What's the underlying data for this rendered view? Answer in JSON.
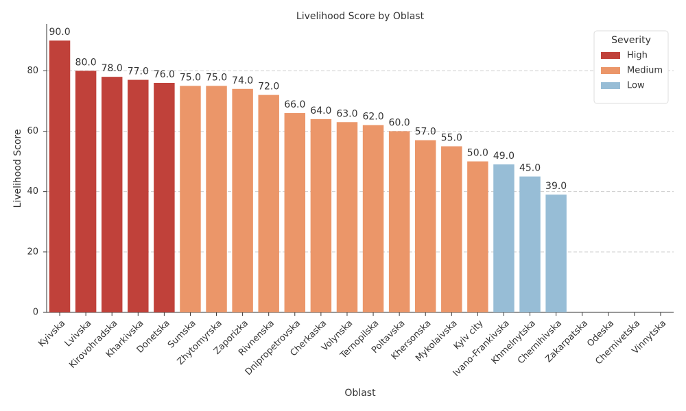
{
  "chart_data": {
    "type": "bar",
    "title": "Livelihood Score by Oblast",
    "x_label": "Oblast",
    "y_label": "Livelihood Score",
    "categories": [
      "Kyivska",
      "Lvivska",
      "Kirovohradska",
      "Kharkivska",
      "Donetska",
      "Sumska",
      "Zhytomyrska",
      "Zaporizka",
      "Rivnenska",
      "Dnipropetrovska",
      "Cherkaska",
      "Volynska",
      "Ternopilska",
      "Poltavska",
      "Khersonska",
      "Mykolaivska",
      "Kyiv city",
      "Ivano-Frankivska",
      "Khmelnytska",
      "Chernihivska",
      "Zakarpatska",
      "Odeska",
      "Chernivetska",
      "Vinnytska"
    ],
    "series": [
      {
        "name": "High",
        "color": "#c0413a",
        "values": [
          90,
          80,
          78,
          77,
          76,
          null,
          null,
          null,
          null,
          null,
          null,
          null,
          null,
          null,
          null,
          null,
          null,
          null,
          null,
          null,
          null,
          null,
          null,
          null
        ],
        "value_labels": [
          "90.0",
          "80.0",
          "78.0",
          "77.0",
          "76.0",
          null,
          null,
          null,
          null,
          null,
          null,
          null,
          null,
          null,
          null,
          null,
          null,
          null,
          null,
          null,
          null,
          null,
          null,
          null
        ]
      },
      {
        "name": "Medium",
        "color": "#eb9669",
        "values": [
          null,
          null,
          null,
          null,
          null,
          75,
          75,
          74,
          72,
          66,
          64,
          63,
          62,
          60,
          57,
          55,
          50,
          null,
          null,
          null,
          null,
          null,
          null,
          null
        ],
        "value_labels": [
          null,
          null,
          null,
          null,
          null,
          "75.0",
          "75.0",
          "74.0",
          "72.0",
          "66.0",
          "64.0",
          "63.0",
          "62.0",
          "60.0",
          "57.0",
          "55.0",
          "50.0",
          null,
          null,
          null,
          null,
          null,
          null,
          null
        ]
      },
      {
        "name": "Low",
        "color": "#97bdd6",
        "values": [
          null,
          null,
          null,
          null,
          null,
          null,
          null,
          null,
          null,
          null,
          null,
          null,
          null,
          null,
          null,
          null,
          null,
          49,
          45,
          39,
          null,
          null,
          null,
          null
        ],
        "value_labels": [
          null,
          null,
          null,
          null,
          null,
          null,
          null,
          null,
          null,
          null,
          null,
          null,
          null,
          null,
          null,
          null,
          null,
          "49.0",
          "45.0",
          "39.0",
          null,
          null,
          null,
          null
        ]
      }
    ],
    "legend_title": "Severity",
    "legend_position": "upper right",
    "ylim": [
      0,
      95.5
    ],
    "yticks": [
      0,
      20,
      40,
      60,
      80
    ],
    "grid": true
  }
}
